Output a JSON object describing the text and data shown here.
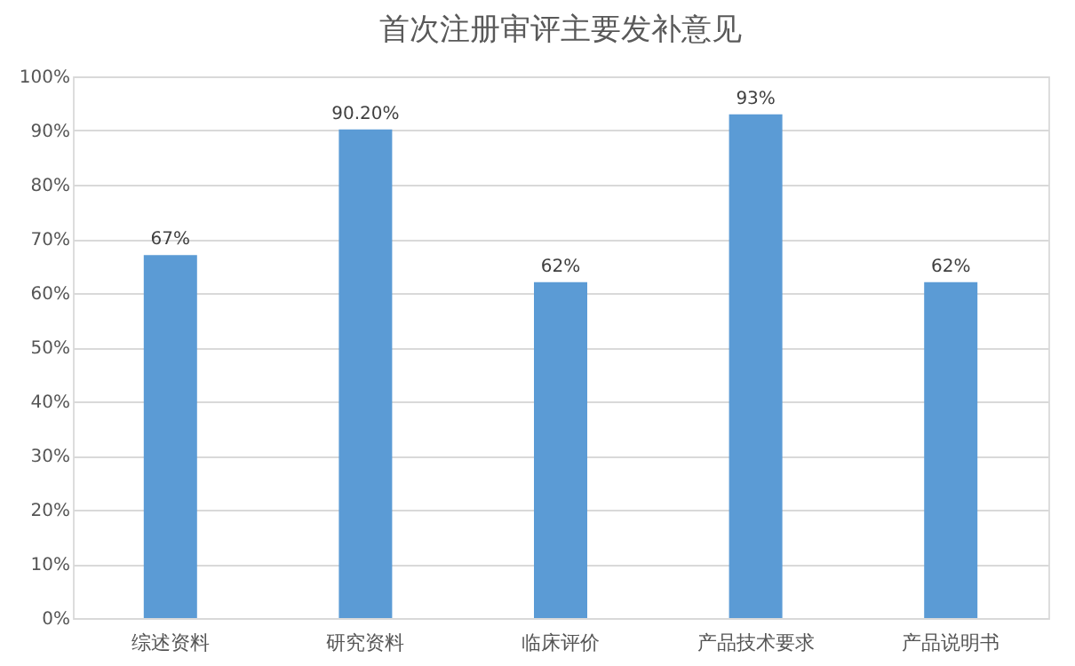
{
  "chart_data": {
    "type": "bar",
    "title": "首次注册审评主要发补意见",
    "categories": [
      "综述资料",
      "研究资料",
      "临床评价",
      "产品技术要求",
      "产品说明书"
    ],
    "values": [
      67,
      90.2,
      62,
      93,
      62
    ],
    "value_labels": [
      "67%",
      "90.20%",
      "62%",
      "93%",
      "62%"
    ],
    "color": "#5b9bd5",
    "ylim": [
      0,
      100
    ],
    "yticks": [
      {
        "value": 0,
        "label": "0%"
      },
      {
        "value": 10,
        "label": "10%"
      },
      {
        "value": 20,
        "label": "20%"
      },
      {
        "value": 30,
        "label": "30%"
      },
      {
        "value": 40,
        "label": "40%"
      },
      {
        "value": 50,
        "label": "50%"
      },
      {
        "value": 60,
        "label": "60%"
      },
      {
        "value": 70,
        "label": "70%"
      },
      {
        "value": 80,
        "label": "80%"
      },
      {
        "value": 90,
        "label": "90%"
      },
      {
        "value": 100,
        "label": "100%"
      }
    ],
    "grid": "y"
  }
}
